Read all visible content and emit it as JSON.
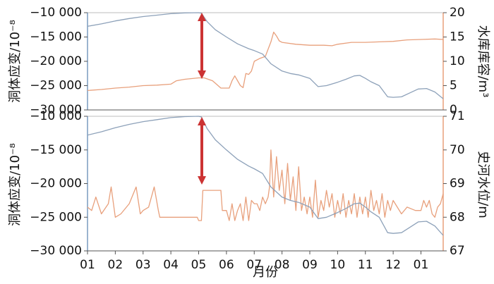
{
  "chart_data": [
    {
      "type": "line",
      "panel": "top",
      "ylabel_left": "洞体应变/10⁻⁸",
      "ylabel_right": "水库库容/m³",
      "ylim_left": [
        -30000,
        -10000
      ],
      "ylim_right": [
        0,
        20
      ],
      "yticks_left": [
        -10000,
        -15000,
        -20000,
        -25000,
        -30000
      ],
      "yticks_left_labels": [
        "−10 000",
        "−15 000",
        "−20 000",
        "−25 000",
        "−30 000"
      ],
      "yticks_right": [
        0,
        5,
        10,
        15,
        20
      ],
      "yticks_right_labels": [
        "0",
        "5",
        "10",
        "15",
        "20"
      ],
      "xlim": [
        1,
        13.8
      ],
      "series": [
        {
          "name": "洞体应变",
          "axis": "left",
          "color": "#8da1b9",
          "x": [
            1.0,
            1.5,
            2.0,
            2.5,
            3.0,
            3.5,
            4.0,
            4.5,
            5.0,
            5.1,
            5.3,
            5.6,
            6.0,
            6.4,
            6.8,
            7.0,
            7.3,
            7.6,
            8.0,
            8.3,
            8.6,
            9.0,
            9.3,
            9.6,
            10.0,
            10.3,
            10.6,
            10.8,
            11.0,
            11.2,
            11.5,
            11.8,
            12.0,
            12.3,
            12.6,
            12.9,
            13.2,
            13.5,
            13.8
          ],
          "y": [
            -12800,
            -12300,
            -11700,
            -11200,
            -10800,
            -10500,
            -10200,
            -10050,
            -10000,
            -10100,
            -11800,
            -13500,
            -15000,
            -16400,
            -17400,
            -17800,
            -18500,
            -20500,
            -22000,
            -22500,
            -22800,
            -23500,
            -25200,
            -25000,
            -24300,
            -23700,
            -23000,
            -22900,
            -23500,
            -24200,
            -25000,
            -27300,
            -27400,
            -27300,
            -26500,
            -25700,
            -25600,
            -26300,
            -27700
          ]
        },
        {
          "name": "水库库容",
          "axis": "right",
          "color": "#e8a07c",
          "x": [
            1.0,
            1.5,
            2.0,
            2.5,
            3.0,
            3.5,
            4.0,
            4.2,
            4.5,
            5.0,
            5.2,
            5.5,
            5.8,
            6.0,
            6.1,
            6.2,
            6.3,
            6.5,
            6.6,
            6.7,
            6.8,
            6.9,
            7.0,
            7.2,
            7.4,
            7.5,
            7.6,
            7.7,
            7.8,
            7.9,
            8.0,
            8.5,
            9.0,
            9.5,
            9.8,
            10.0,
            10.5,
            11.0,
            11.5,
            12.0,
            12.5,
            13.0,
            13.5,
            13.8
          ],
          "y": [
            4.0,
            4.2,
            4.5,
            4.7,
            5.0,
            5.1,
            5.3,
            6.0,
            6.3,
            6.6,
            6.6,
            6.0,
            4.5,
            4.5,
            4.5,
            6.0,
            7.0,
            5.0,
            4.6,
            7.5,
            7.3,
            8.0,
            10.0,
            10.6,
            11.0,
            12.5,
            14.0,
            16.0,
            15.2,
            14.2,
            13.9,
            13.5,
            13.3,
            13.3,
            13.2,
            13.5,
            13.9,
            13.9,
            14.0,
            14.1,
            14.4,
            14.5,
            14.6,
            14.5
          ]
        }
      ]
    },
    {
      "type": "line",
      "panel": "bottom",
      "ylabel_left": "洞体应变/10⁻⁸",
      "ylabel_right": "史河水位/m",
      "xlabel": "月份",
      "ylim_left": [
        -30000,
        -10000
      ],
      "ylim_right": [
        67,
        71
      ],
      "yticks_left": [
        -10000,
        -15000,
        -20000,
        -25000,
        -30000
      ],
      "yticks_left_labels": [
        "−10 000",
        "−15 000",
        "−20 000",
        "−25 000",
        "−30 000"
      ],
      "yticks_right": [
        67,
        68,
        69,
        70,
        71
      ],
      "yticks_right_labels": [
        "67",
        "68",
        "69",
        "70",
        "71"
      ],
      "xlim": [
        1,
        13.8
      ],
      "xticks": [
        1,
        2,
        3,
        4,
        5,
        6,
        7,
        8,
        9,
        10,
        11,
        12,
        13
      ],
      "xtick_labels": [
        "01",
        "02",
        "03",
        "04",
        "05",
        "06",
        "07",
        "08",
        "09",
        "10",
        "11",
        "12",
        "01"
      ],
      "series": [
        {
          "name": "洞体应变",
          "axis": "left",
          "color": "#8da1b9",
          "x": [
            1.0,
            1.5,
            2.0,
            2.5,
            3.0,
            3.5,
            4.0,
            4.5,
            5.0,
            5.1,
            5.3,
            5.6,
            6.0,
            6.4,
            6.8,
            7.0,
            7.3,
            7.6,
            8.0,
            8.3,
            8.6,
            9.0,
            9.3,
            9.6,
            10.0,
            10.3,
            10.6,
            10.8,
            11.0,
            11.2,
            11.5,
            11.8,
            12.0,
            12.3,
            12.6,
            12.9,
            13.2,
            13.5,
            13.8
          ],
          "y": [
            -12800,
            -12300,
            -11700,
            -11200,
            -10800,
            -10500,
            -10200,
            -10050,
            -10000,
            -10100,
            -11800,
            -13500,
            -15000,
            -16400,
            -17400,
            -17800,
            -18500,
            -20500,
            -22000,
            -22500,
            -22800,
            -23500,
            -25200,
            -25000,
            -24300,
            -23700,
            -23000,
            -22900,
            -23500,
            -24200,
            -25000,
            -27300,
            -27400,
            -27300,
            -26500,
            -25700,
            -25600,
            -26300,
            -27700
          ]
        },
        {
          "name": "史河水位",
          "axis": "right",
          "color": "#e8a07c",
          "x": [
            1.0,
            1.15,
            1.3,
            1.5,
            1.75,
            1.85,
            2.0,
            2.2,
            2.5,
            2.75,
            2.9,
            3.0,
            3.2,
            3.4,
            3.55,
            3.6,
            4.0,
            4.4,
            4.7,
            4.95,
            5.0,
            5.1,
            5.15,
            5.5,
            5.8,
            5.85,
            6.0,
            6.1,
            6.2,
            6.3,
            6.4,
            6.5,
            6.6,
            6.7,
            6.8,
            6.9,
            7.0,
            7.1,
            7.2,
            7.3,
            7.4,
            7.5,
            7.55,
            7.6,
            7.7,
            7.8,
            7.9,
            8.0,
            8.1,
            8.2,
            8.3,
            8.4,
            8.5,
            8.6,
            8.7,
            8.8,
            8.9,
            9.0,
            9.1,
            9.2,
            9.3,
            9.4,
            9.5,
            9.6,
            9.7,
            9.8,
            9.9,
            10.0,
            10.1,
            10.2,
            10.3,
            10.4,
            10.5,
            10.6,
            10.7,
            10.8,
            10.9,
            11.0,
            11.1,
            11.2,
            11.3,
            11.4,
            11.5,
            11.6,
            11.7,
            11.8,
            11.9,
            12.0,
            12.3,
            12.5,
            12.8,
            13.0,
            13.1,
            13.2,
            13.3,
            13.4,
            13.5,
            13.6,
            13.7,
            13.8
          ],
          "y": [
            68.3,
            68.2,
            68.6,
            68.1,
            68.4,
            68.9,
            68.0,
            68.1,
            68.4,
            68.9,
            68.1,
            68.2,
            68.3,
            68.9,
            68.2,
            68.0,
            68.0,
            68.0,
            68.0,
            68.0,
            67.9,
            67.9,
            68.8,
            68.8,
            68.8,
            68.2,
            68.2,
            67.9,
            68.4,
            67.9,
            68.2,
            68.4,
            67.9,
            68.6,
            67.9,
            68.5,
            68.4,
            68.4,
            68.2,
            68.6,
            68.4,
            68.6,
            68.9,
            70.0,
            68.6,
            69.8,
            68.8,
            69.4,
            68.4,
            69.6,
            68.5,
            69.2,
            68.2,
            69.5,
            68.2,
            68.6,
            68.1,
            68.6,
            68.0,
            69.1,
            68.0,
            68.5,
            68.2,
            68.8,
            68.3,
            68.7,
            68.0,
            68.5,
            68.1,
            68.7,
            68.0,
            68.5,
            68.1,
            68.7,
            68.0,
            68.6,
            68.1,
            68.6,
            68.0,
            68.8,
            68.2,
            68.5,
            68.1,
            68.7,
            68.0,
            68.5,
            68.2,
            68.5,
            68.1,
            68.3,
            68.2,
            68.2,
            68.5,
            68.3,
            68.5,
            68.1,
            68.0,
            68.3,
            68.4,
            68.7
          ]
        }
      ]
    }
  ]
}
